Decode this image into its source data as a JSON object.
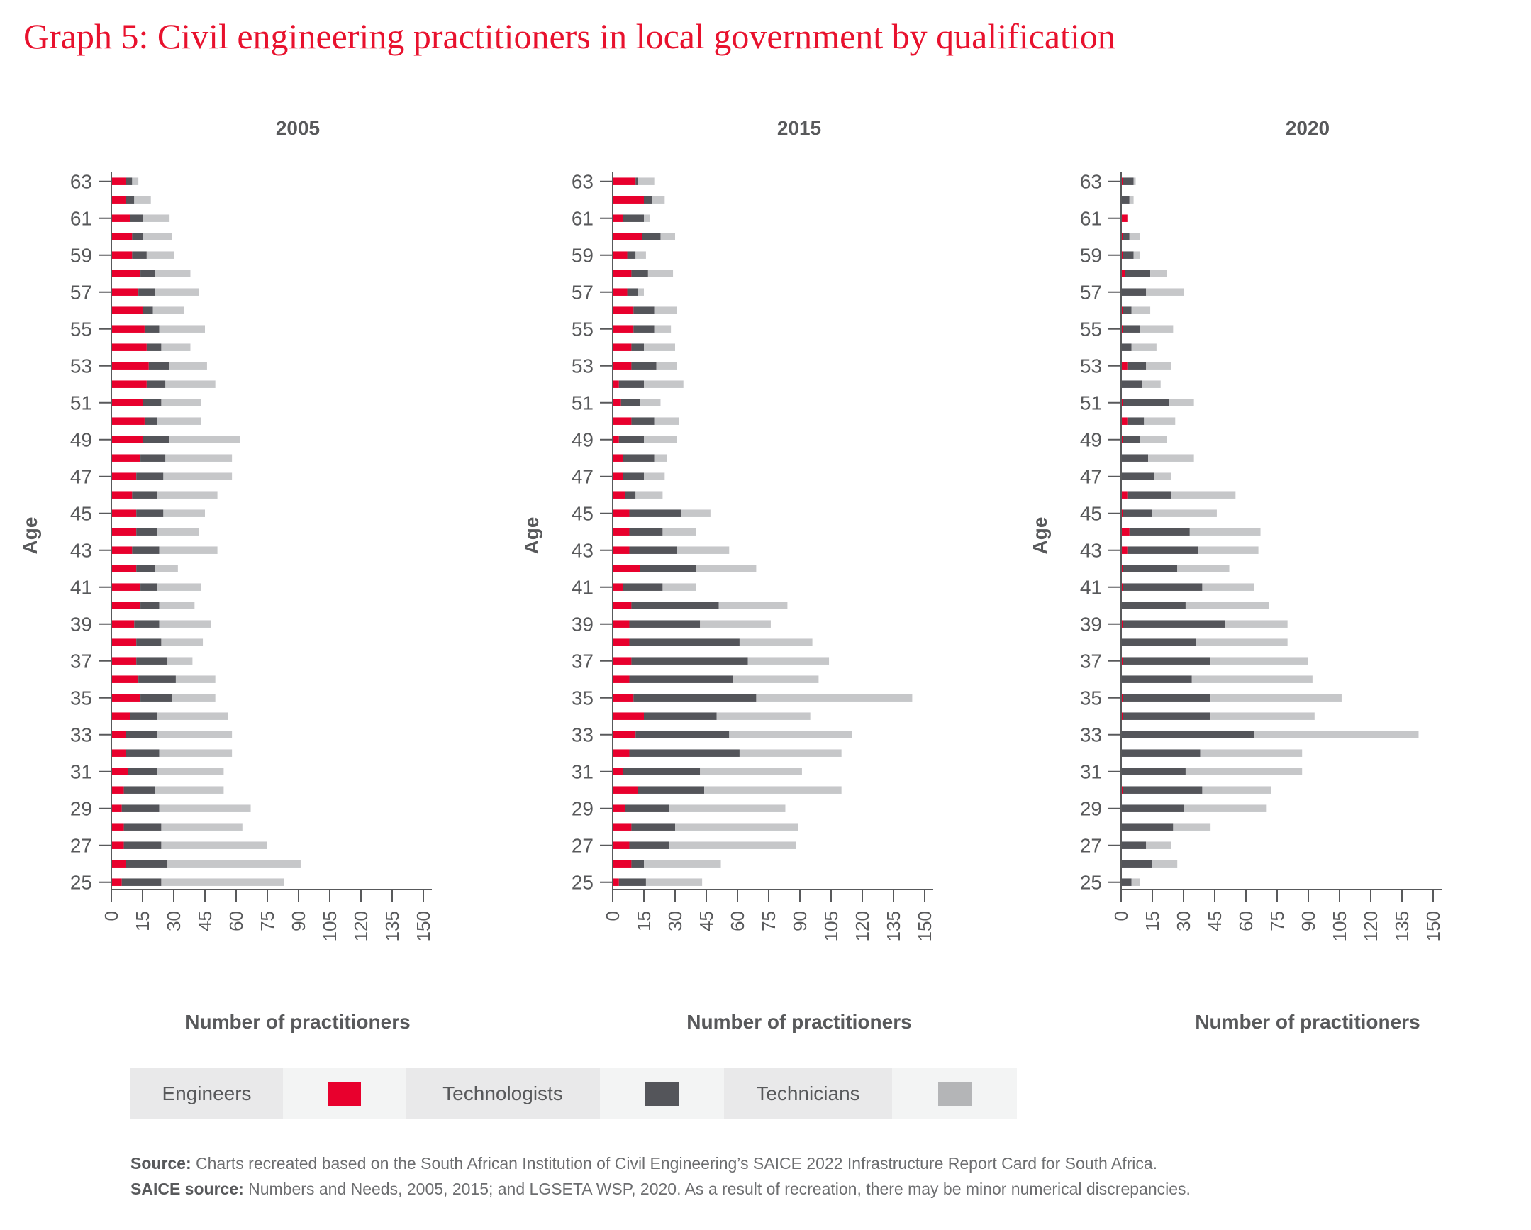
{
  "title": "Graph 5: Civil engineering practitioners in local government by qualification",
  "colors": {
    "engineers": "#e8002d",
    "technologists": "#54555a",
    "technicians": "#c6c7c9",
    "title": "#e8112d"
  },
  "legend": [
    {
      "label": "Engineers",
      "color": "#e8002d"
    },
    {
      "label": "Technologists",
      "color": "#54555a"
    },
    {
      "label": "Technicians",
      "color": "#b4b5b7"
    }
  ],
  "footer": {
    "source_label": "Source:",
    "source_text": " Charts recreated based on the South African Institution of Civil Engineering’s SAICE 2022 Infrastructure Report Card for South Africa.",
    "saice_label": "SAICE source:",
    "saice_text": " Numbers and Needs, 2005, 2015; and LGSETA WSP, 2020. As a result of recreation, there may be minor numerical discrepancies."
  },
  "chart_data": [
    {
      "type": "bar",
      "orientation": "horizontal",
      "stacked": true,
      "title": "2005",
      "xlabel": "Number of practitioners",
      "ylabel": "Age",
      "xlim": [
        0,
        150
      ],
      "xticks": [
        0,
        15,
        30,
        45,
        60,
        75,
        90,
        105,
        120,
        135,
        150
      ],
      "yticks": [
        63,
        61,
        59,
        57,
        55,
        53,
        51,
        49,
        47,
        45,
        43,
        41,
        39,
        37,
        35,
        33,
        31,
        29,
        27,
        25
      ],
      "ages": [
        63,
        62,
        61,
        60,
        59,
        58,
        57,
        56,
        55,
        54,
        53,
        52,
        51,
        50,
        49,
        48,
        47,
        46,
        45,
        44,
        43,
        42,
        41,
        40,
        39,
        38,
        37,
        36,
        35,
        34,
        33,
        32,
        31,
        30,
        29,
        28,
        27,
        26,
        25
      ],
      "series": [
        {
          "name": "Engineers",
          "values": [
            7,
            7,
            9,
            10,
            10,
            14,
            13,
            15,
            16,
            17,
            18,
            17,
            15,
            16,
            15,
            14,
            12,
            10,
            12,
            12,
            10,
            12,
            14,
            14,
            11,
            12,
            12,
            13,
            14,
            9,
            7,
            7,
            8,
            6,
            5,
            6,
            6,
            7,
            5
          ]
        },
        {
          "name": "Technologists",
          "values": [
            3,
            4,
            6,
            5,
            7,
            7,
            8,
            5,
            7,
            7,
            10,
            9,
            9,
            6,
            13,
            12,
            13,
            12,
            13,
            10,
            13,
            9,
            8,
            9,
            12,
            12,
            15,
            18,
            15,
            13,
            15,
            16,
            14,
            15,
            18,
            18,
            18,
            20,
            19
          ]
        },
        {
          "name": "Technicians",
          "values": [
            3,
            8,
            13,
            14,
            13,
            17,
            21,
            15,
            22,
            14,
            18,
            24,
            19,
            21,
            34,
            32,
            33,
            29,
            20,
            20,
            28,
            11,
            21,
            17,
            25,
            20,
            12,
            19,
            21,
            34,
            36,
            35,
            32,
            33,
            44,
            39,
            51,
            64,
            59
          ]
        }
      ]
    },
    {
      "type": "bar",
      "orientation": "horizontal",
      "stacked": true,
      "title": "2015",
      "xlabel": "Number of practitioners",
      "ylabel": "Age",
      "xlim": [
        0,
        150
      ],
      "xticks": [
        0,
        15,
        30,
        45,
        60,
        75,
        90,
        105,
        120,
        135,
        150
      ],
      "yticks": [
        63,
        61,
        59,
        57,
        55,
        53,
        51,
        49,
        47,
        45,
        43,
        41,
        39,
        37,
        35,
        33,
        31,
        29,
        27,
        25
      ],
      "ages": [
        63,
        62,
        61,
        60,
        59,
        58,
        57,
        56,
        55,
        54,
        53,
        52,
        51,
        50,
        49,
        48,
        47,
        46,
        45,
        44,
        43,
        42,
        41,
        40,
        39,
        38,
        37,
        36,
        35,
        34,
        33,
        32,
        31,
        30,
        29,
        28,
        27,
        26,
        25
      ],
      "series": [
        {
          "name": "Engineers",
          "values": [
            11,
            15,
            5,
            14,
            7,
            9,
            7,
            10,
            10,
            9,
            9,
            3,
            4,
            9,
            3,
            5,
            5,
            6,
            8,
            8,
            8,
            13,
            5,
            9,
            8,
            8,
            9,
            8,
            10,
            15,
            11,
            8,
            5,
            12,
            6,
            9,
            8,
            9,
            3
          ]
        },
        {
          "name": "Technologists",
          "values": [
            1,
            4,
            10,
            9,
            4,
            8,
            5,
            10,
            10,
            6,
            12,
            12,
            9,
            11,
            12,
            15,
            10,
            5,
            25,
            16,
            23,
            27,
            19,
            42,
            34,
            53,
            56,
            50,
            59,
            35,
            45,
            53,
            37,
            32,
            21,
            21,
            19,
            6,
            13
          ]
        },
        {
          "name": "Technicians",
          "values": [
            8,
            6,
            3,
            7,
            5,
            12,
            3,
            11,
            8,
            15,
            10,
            19,
            10,
            12,
            16,
            6,
            10,
            13,
            14,
            16,
            25,
            29,
            16,
            33,
            34,
            35,
            39,
            41,
            75,
            45,
            59,
            49,
            49,
            66,
            56,
            59,
            61,
            37,
            27
          ]
        }
      ]
    },
    {
      "type": "bar",
      "orientation": "horizontal",
      "stacked": true,
      "title": "2020",
      "xlabel": "Number of practitioners",
      "ylabel": "Age",
      "xlim": [
        0,
        150
      ],
      "xticks": [
        0,
        15,
        30,
        45,
        60,
        75,
        90,
        105,
        120,
        135,
        150
      ],
      "yticks": [
        63,
        61,
        59,
        57,
        55,
        53,
        51,
        49,
        47,
        45,
        43,
        41,
        39,
        37,
        35,
        33,
        31,
        29,
        27,
        25
      ],
      "ages": [
        63,
        62,
        61,
        60,
        59,
        58,
        57,
        56,
        55,
        54,
        53,
        52,
        51,
        50,
        49,
        48,
        47,
        46,
        45,
        44,
        43,
        42,
        41,
        40,
        39,
        38,
        37,
        36,
        35,
        34,
        33,
        32,
        31,
        30,
        29,
        28,
        27,
        26,
        25
      ],
      "series": [
        {
          "name": "Engineers",
          "values": [
            1,
            0,
            3,
            1,
            1,
            2,
            0,
            1,
            1,
            0,
            3,
            0,
            1,
            3,
            1,
            0,
            0,
            3,
            1,
            4,
            3,
            1,
            1,
            0,
            1,
            0,
            1,
            0,
            1,
            1,
            0,
            0,
            0,
            1,
            0,
            0,
            0,
            0,
            0
          ]
        },
        {
          "name": "Technologists",
          "values": [
            5,
            4,
            0,
            3,
            5,
            12,
            12,
            4,
            8,
            5,
            9,
            10,
            22,
            8,
            8,
            13,
            16,
            21,
            14,
            29,
            34,
            26,
            38,
            31,
            49,
            36,
            42,
            34,
            42,
            42,
            64,
            38,
            31,
            38,
            30,
            25,
            12,
            15,
            5
          ]
        },
        {
          "name": "Technicians",
          "values": [
            1,
            2,
            0,
            5,
            3,
            8,
            18,
            9,
            16,
            12,
            12,
            9,
            12,
            15,
            13,
            22,
            8,
            31,
            31,
            34,
            29,
            25,
            25,
            40,
            30,
            44,
            47,
            58,
            63,
            50,
            79,
            49,
            56,
            33,
            40,
            18,
            12,
            12,
            4
          ]
        }
      ]
    }
  ]
}
